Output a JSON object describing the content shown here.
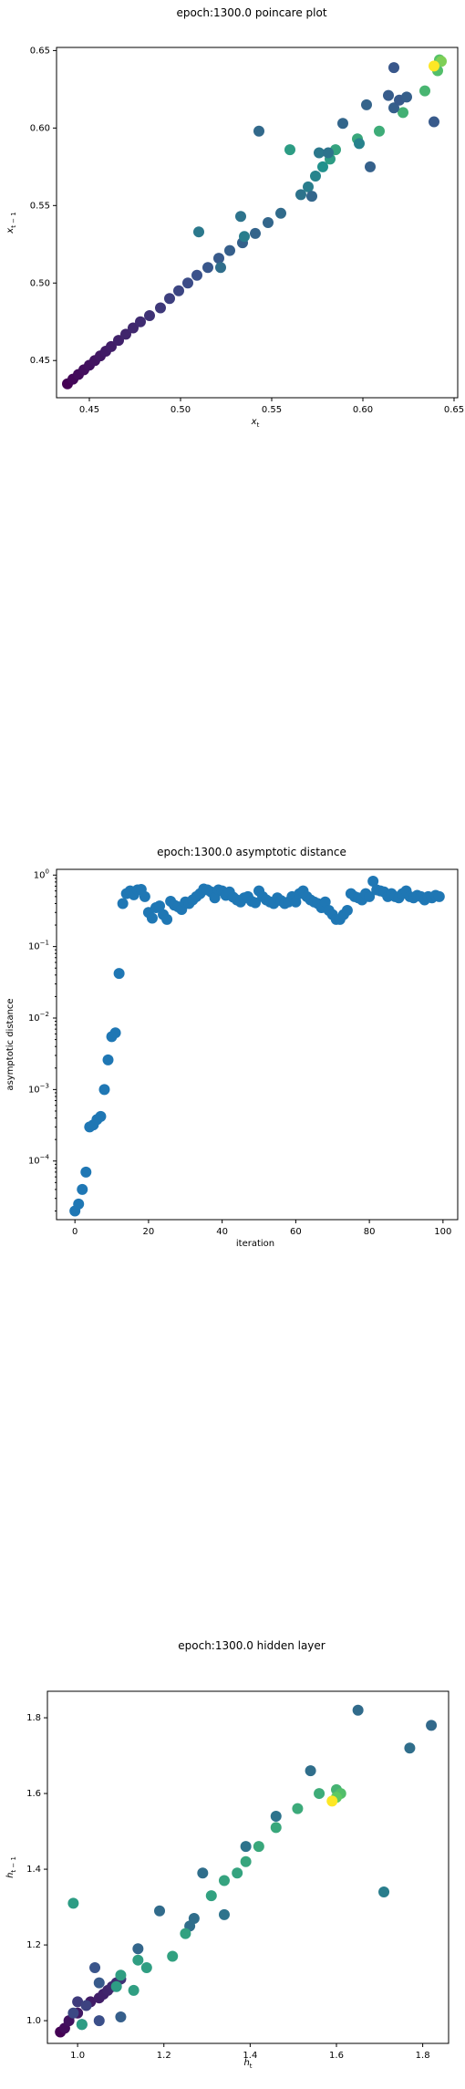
{
  "chart_data": [
    {
      "type": "scatter",
      "title": "epoch:1300.0 poincare plot",
      "xlabel": "x_t",
      "ylabel": "x_{t-1}",
      "xlim": [
        0.432,
        0.652
      ],
      "ylim": [
        0.426,
        0.652
      ],
      "xticks": [
        0.45,
        0.5,
        0.55,
        0.6,
        0.65
      ],
      "xtick_labels": [
        "0.45",
        "0.50",
        "0.55",
        "0.60",
        "0.65"
      ],
      "yticks": [
        0.45,
        0.5,
        0.55,
        0.6,
        0.65
      ],
      "ytick_labels": [
        "0.45",
        "0.50",
        "0.55",
        "0.60",
        "0.65"
      ],
      "colormap": "viridis",
      "points": [
        {
          "x": 0.438,
          "y": 0.435,
          "c": 0.0
        },
        {
          "x": 0.441,
          "y": 0.438,
          "c": 0.02
        },
        {
          "x": 0.444,
          "y": 0.441,
          "c": 0.03
        },
        {
          "x": 0.447,
          "y": 0.444,
          "c": 0.04
        },
        {
          "x": 0.45,
          "y": 0.447,
          "c": 0.05
        },
        {
          "x": 0.453,
          "y": 0.45,
          "c": 0.06
        },
        {
          "x": 0.456,
          "y": 0.453,
          "c": 0.07
        },
        {
          "x": 0.459,
          "y": 0.456,
          "c": 0.08
        },
        {
          "x": 0.462,
          "y": 0.459,
          "c": 0.09
        },
        {
          "x": 0.466,
          "y": 0.463,
          "c": 0.1
        },
        {
          "x": 0.47,
          "y": 0.467,
          "c": 0.11
        },
        {
          "x": 0.474,
          "y": 0.471,
          "c": 0.12
        },
        {
          "x": 0.478,
          "y": 0.475,
          "c": 0.13
        },
        {
          "x": 0.483,
          "y": 0.479,
          "c": 0.15
        },
        {
          "x": 0.489,
          "y": 0.484,
          "c": 0.17
        },
        {
          "x": 0.494,
          "y": 0.49,
          "c": 0.19
        },
        {
          "x": 0.499,
          "y": 0.495,
          "c": 0.21
        },
        {
          "x": 0.504,
          "y": 0.5,
          "c": 0.23
        },
        {
          "x": 0.509,
          "y": 0.505,
          "c": 0.25
        },
        {
          "x": 0.515,
          "y": 0.51,
          "c": 0.27
        },
        {
          "x": 0.521,
          "y": 0.516,
          "c": 0.28
        },
        {
          "x": 0.527,
          "y": 0.521,
          "c": 0.3
        },
        {
          "x": 0.534,
          "y": 0.526,
          "c": 0.31
        },
        {
          "x": 0.541,
          "y": 0.532,
          "c": 0.32
        },
        {
          "x": 0.548,
          "y": 0.539,
          "c": 0.33
        },
        {
          "x": 0.555,
          "y": 0.545,
          "c": 0.35
        },
        {
          "x": 0.566,
          "y": 0.557,
          "c": 0.38
        },
        {
          "x": 0.57,
          "y": 0.562,
          "c": 0.42
        },
        {
          "x": 0.574,
          "y": 0.569,
          "c": 0.45
        },
        {
          "x": 0.578,
          "y": 0.575,
          "c": 0.5
        },
        {
          "x": 0.582,
          "y": 0.58,
          "c": 0.55
        },
        {
          "x": 0.585,
          "y": 0.586,
          "c": 0.58
        },
        {
          "x": 0.597,
          "y": 0.593,
          "c": 0.6
        },
        {
          "x": 0.609,
          "y": 0.598,
          "c": 0.62
        },
        {
          "x": 0.622,
          "y": 0.61,
          "c": 0.64
        },
        {
          "x": 0.634,
          "y": 0.624,
          "c": 0.66
        },
        {
          "x": 0.641,
          "y": 0.637,
          "c": 0.7
        },
        {
          "x": 0.642,
          "y": 0.644,
          "c": 0.72
        },
        {
          "x": 0.643,
          "y": 0.643,
          "c": 0.8
        },
        {
          "x": 0.639,
          "y": 0.64,
          "c": 1.0
        },
        {
          "x": 0.51,
          "y": 0.533,
          "c": 0.4
        },
        {
          "x": 0.533,
          "y": 0.543,
          "c": 0.38
        },
        {
          "x": 0.535,
          "y": 0.53,
          "c": 0.42
        },
        {
          "x": 0.543,
          "y": 0.598,
          "c": 0.34
        },
        {
          "x": 0.56,
          "y": 0.586,
          "c": 0.55
        },
        {
          "x": 0.572,
          "y": 0.556,
          "c": 0.33
        },
        {
          "x": 0.576,
          "y": 0.584,
          "c": 0.4
        },
        {
          "x": 0.581,
          "y": 0.584,
          "c": 0.38
        },
        {
          "x": 0.589,
          "y": 0.603,
          "c": 0.33
        },
        {
          "x": 0.598,
          "y": 0.59,
          "c": 0.44
        },
        {
          "x": 0.602,
          "y": 0.615,
          "c": 0.32
        },
        {
          "x": 0.604,
          "y": 0.575,
          "c": 0.31
        },
        {
          "x": 0.614,
          "y": 0.621,
          "c": 0.29
        },
        {
          "x": 0.617,
          "y": 0.639,
          "c": 0.27
        },
        {
          "x": 0.617,
          "y": 0.613,
          "c": 0.3
        },
        {
          "x": 0.62,
          "y": 0.618,
          "c": 0.28
        },
        {
          "x": 0.624,
          "y": 0.62,
          "c": 0.3
        },
        {
          "x": 0.639,
          "y": 0.604,
          "c": 0.28
        },
        {
          "x": 0.522,
          "y": 0.51,
          "c": 0.36
        }
      ]
    },
    {
      "type": "scatter",
      "title": "epoch:1300.0 asymptotic distance",
      "xlabel": "iteration",
      "ylabel": "asymptotic distance",
      "yscale": "log",
      "xlim": [
        -5,
        104
      ],
      "ylim_exponent": [
        -4.82,
        0.08
      ],
      "xticks": [
        0,
        20,
        40,
        60,
        80,
        100
      ],
      "xtick_labels": [
        "0",
        "20",
        "40",
        "60",
        "80",
        "100"
      ],
      "yticks_exponent": [
        -4,
        -3,
        -2,
        -1,
        0
      ],
      "ytick_base": "10",
      "color": "#1f77b4",
      "x": [
        0,
        1,
        2,
        3,
        4,
        5,
        6,
        7,
        8,
        9,
        10,
        11,
        12,
        13,
        14,
        15,
        16,
        17,
        18,
        19,
        20,
        21,
        22,
        23,
        24,
        25,
        26,
        27,
        28,
        29,
        30,
        31,
        32,
        33,
        34,
        35,
        36,
        37,
        38,
        39,
        40,
        41,
        42,
        43,
        44,
        45,
        46,
        47,
        48,
        49,
        50,
        51,
        52,
        53,
        54,
        55,
        56,
        57,
        58,
        59,
        60,
        61,
        62,
        63,
        64,
        65,
        66,
        67,
        68,
        69,
        70,
        71,
        72,
        73,
        74,
        75,
        76,
        77,
        78,
        79,
        80,
        81,
        82,
        83,
        84,
        85,
        86,
        87,
        88,
        89,
        90,
        91,
        92,
        93,
        94,
        95,
        96,
        97,
        98,
        99
      ],
      "y": [
        2e-05,
        2.5e-05,
        4e-05,
        7e-05,
        0.0003,
        0.00032,
        0.00038,
        0.00042,
        0.001,
        0.0026,
        0.0055,
        0.0062,
        0.042,
        0.4,
        0.55,
        0.6,
        0.53,
        0.62,
        0.63,
        0.5,
        0.3,
        0.25,
        0.35,
        0.37,
        0.28,
        0.24,
        0.43,
        0.38,
        0.36,
        0.33,
        0.42,
        0.4,
        0.45,
        0.5,
        0.55,
        0.64,
        0.62,
        0.58,
        0.48,
        0.62,
        0.6,
        0.52,
        0.58,
        0.49,
        0.45,
        0.42,
        0.48,
        0.5,
        0.43,
        0.41,
        0.6,
        0.5,
        0.45,
        0.42,
        0.4,
        0.48,
        0.44,
        0.4,
        0.42,
        0.5,
        0.42,
        0.55,
        0.6,
        0.5,
        0.45,
        0.42,
        0.4,
        0.35,
        0.42,
        0.32,
        0.28,
        0.24,
        0.24,
        0.28,
        0.32,
        0.55,
        0.5,
        0.48,
        0.45,
        0.55,
        0.5,
        0.82,
        0.62,
        0.6,
        0.58,
        0.5,
        0.55,
        0.5,
        0.48,
        0.55,
        0.6,
        0.5,
        0.48,
        0.52,
        0.5,
        0.45,
        0.5,
        0.48,
        0.52,
        0.5
      ]
    },
    {
      "type": "scatter",
      "title": "epoch:1300.0 hidden layer",
      "xlabel": "h_t",
      "ylabel": "h_{t-1}",
      "xlim": [
        0.93,
        1.86
      ],
      "ylim": [
        0.94,
        1.87
      ],
      "xticks": [
        1.0,
        1.2,
        1.4,
        1.6,
        1.8
      ],
      "xtick_labels": [
        "1.0",
        "1.2",
        "1.4",
        "1.6",
        "1.8"
      ],
      "yticks": [
        1.0,
        1.2,
        1.4,
        1.6,
        1.8
      ],
      "ytick_labels": [
        "1.0",
        "1.2",
        "1.4",
        "1.6",
        "1.8"
      ],
      "colormap": "viridis",
      "points": [
        {
          "x": 0.96,
          "y": 0.97,
          "c": 0.0
        },
        {
          "x": 0.97,
          "y": 0.98,
          "c": 0.03
        },
        {
          "x": 0.98,
          "y": 1.0,
          "c": 0.05
        },
        {
          "x": 1.0,
          "y": 1.02,
          "c": 0.07
        },
        {
          "x": 1.03,
          "y": 1.05,
          "c": 0.08
        },
        {
          "x": 1.05,
          "y": 1.06,
          "c": 0.09
        },
        {
          "x": 1.06,
          "y": 1.07,
          "c": 0.1
        },
        {
          "x": 1.07,
          "y": 1.08,
          "c": 0.11
        },
        {
          "x": 1.08,
          "y": 1.09,
          "c": 0.12
        },
        {
          "x": 1.09,
          "y": 1.1,
          "c": 0.13
        },
        {
          "x": 1.1,
          "y": 1.11,
          "c": 0.15
        },
        {
          "x": 1.0,
          "y": 1.05,
          "c": 0.18
        },
        {
          "x": 1.02,
          "y": 1.04,
          "c": 0.2
        },
        {
          "x": 0.99,
          "y": 1.02,
          "c": 0.22
        },
        {
          "x": 1.05,
          "y": 1.0,
          "c": 0.24
        },
        {
          "x": 1.04,
          "y": 1.14,
          "c": 0.26
        },
        {
          "x": 1.05,
          "y": 1.1,
          "c": 0.28
        },
        {
          "x": 1.1,
          "y": 1.01,
          "c": 0.3
        },
        {
          "x": 1.01,
          "y": 0.99,
          "c": 0.34
        },
        {
          "x": 1.14,
          "y": 1.19,
          "c": 0.33
        },
        {
          "x": 1.19,
          "y": 1.29,
          "c": 0.35
        },
        {
          "x": 1.26,
          "y": 1.25,
          "c": 0.36
        },
        {
          "x": 1.27,
          "y": 1.27,
          "c": 0.36
        },
        {
          "x": 1.29,
          "y": 1.39,
          "c": 0.36
        },
        {
          "x": 1.34,
          "y": 1.28,
          "c": 0.38
        },
        {
          "x": 1.39,
          "y": 1.46,
          "c": 0.38
        },
        {
          "x": 1.46,
          "y": 1.54,
          "c": 0.38
        },
        {
          "x": 1.54,
          "y": 1.66,
          "c": 0.36
        },
        {
          "x": 1.65,
          "y": 1.82,
          "c": 0.35
        },
        {
          "x": 1.77,
          "y": 1.72,
          "c": 0.36
        },
        {
          "x": 1.82,
          "y": 1.78,
          "c": 0.34
        },
        {
          "x": 1.71,
          "y": 1.34,
          "c": 0.42
        },
        {
          "x": 0.99,
          "y": 1.31,
          "c": 0.55
        },
        {
          "x": 1.01,
          "y": 0.99,
          "c": 0.55
        },
        {
          "x": 1.09,
          "y": 1.09,
          "c": 0.55
        },
        {
          "x": 1.1,
          "y": 1.12,
          "c": 0.56
        },
        {
          "x": 1.13,
          "y": 1.08,
          "c": 0.56
        },
        {
          "x": 1.14,
          "y": 1.16,
          "c": 0.56
        },
        {
          "x": 1.16,
          "y": 1.14,
          "c": 0.56
        },
        {
          "x": 1.22,
          "y": 1.17,
          "c": 0.57
        },
        {
          "x": 1.25,
          "y": 1.23,
          "c": 0.57
        },
        {
          "x": 1.31,
          "y": 1.33,
          "c": 0.57
        },
        {
          "x": 1.34,
          "y": 1.37,
          "c": 0.58
        },
        {
          "x": 1.37,
          "y": 1.39,
          "c": 0.58
        },
        {
          "x": 1.39,
          "y": 1.42,
          "c": 0.59
        },
        {
          "x": 1.42,
          "y": 1.46,
          "c": 0.6
        },
        {
          "x": 1.46,
          "y": 1.51,
          "c": 0.6
        },
        {
          "x": 1.51,
          "y": 1.56,
          "c": 0.61
        },
        {
          "x": 1.56,
          "y": 1.6,
          "c": 0.62
        },
        {
          "x": 1.6,
          "y": 1.61,
          "c": 0.65
        },
        {
          "x": 1.61,
          "y": 1.6,
          "c": 0.7
        },
        {
          "x": 1.6,
          "y": 1.59,
          "c": 0.75
        },
        {
          "x": 1.59,
          "y": 1.58,
          "c": 1.0
        }
      ]
    }
  ]
}
